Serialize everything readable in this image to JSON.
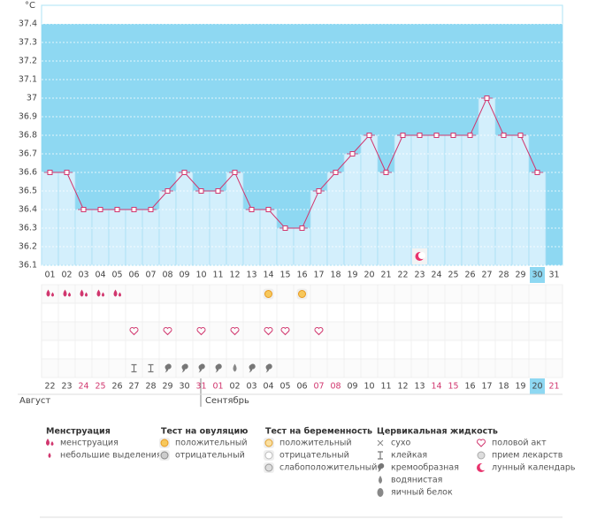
{
  "chart_data": {
    "type": "line",
    "y_unit": "°C",
    "ylim": [
      36.1,
      37.5
    ],
    "yticks": [
      36.1,
      36.2,
      36.3,
      36.4,
      36.5,
      36.6,
      36.7,
      36.8,
      36.9,
      37,
      37.1,
      37.2,
      37.3,
      37.4
    ],
    "categories": [
      "01",
      "02",
      "03",
      "04",
      "05",
      "06",
      "07",
      "08",
      "09",
      "10",
      "11",
      "12",
      "13",
      "14",
      "15",
      "16",
      "17",
      "18",
      "19",
      "20",
      "21",
      "22",
      "23",
      "24",
      "25",
      "26",
      "27",
      "28",
      "29",
      "30",
      "31"
    ],
    "values": [
      36.6,
      36.6,
      36.4,
      36.4,
      36.4,
      36.4,
      36.4,
      36.5,
      36.6,
      36.5,
      36.5,
      36.6,
      36.4,
      36.4,
      36.3,
      36.3,
      36.5,
      36.6,
      36.7,
      36.8,
      36.6,
      36.8,
      36.8,
      36.8,
      36.8,
      36.8,
      37.0,
      36.8,
      36.8,
      36.6,
      null
    ],
    "color": "#d1366e",
    "grid": true,
    "dates": [
      "22",
      "23",
      "24",
      "25",
      "26",
      "27",
      "28",
      "29",
      "30",
      "31",
      "01",
      "02",
      "03",
      "04",
      "05",
      "06",
      "07",
      "08",
      "09",
      "10",
      "11",
      "12",
      "13",
      "14",
      "15",
      "16",
      "17",
      "18",
      "19",
      "20",
      "21"
    ],
    "date_colors": [
      "#444",
      "#444",
      "#d1366e",
      "#d1366e",
      "#444",
      "#444",
      "#444",
      "#444",
      "#444",
      "#d1366e",
      "#d1366e",
      "#444",
      "#444",
      "#444",
      "#444",
      "#444",
      "#d1366e",
      "#d1366e",
      "#444",
      "#444",
      "#444",
      "#444",
      "#444",
      "#d1366e",
      "#d1366e",
      "#444",
      "#444",
      "#444",
      "#444",
      "#444",
      "#d1366e"
    ],
    "months": [
      "Август",
      "Сентябрь"
    ],
    "today": {
      "cycle_day": "30",
      "date": "20"
    }
  },
  "legend": [
    {
      "title": "Менструация",
      "items": [
        {
          "label": "менструация",
          "days": [
            "01",
            "02",
            "03",
            "04",
            "05"
          ]
        },
        {
          "label": "небольшие выделения",
          "days": []
        }
      ]
    },
    {
      "title": "Тест на овуляцию",
      "items": [
        {
          "label": "положительный",
          "days": [
            "14",
            "16"
          ]
        },
        {
          "label": "отрицательный",
          "days": []
        }
      ]
    },
    {
      "title": "Тест на беременность",
      "items": [
        {
          "label": "положительный",
          "days": []
        },
        {
          "label": "отрицательный",
          "days": []
        },
        {
          "label": "слабоположительный",
          "days": []
        }
      ]
    },
    {
      "title": "Цервикальная жидкость",
      "items": [
        {
          "label": "сухо",
          "days": []
        },
        {
          "label": "клейкая",
          "days": [
            "06",
            "07"
          ]
        },
        {
          "label": "кремообразная",
          "days": [
            "08",
            "09",
            "10",
            "11",
            "13",
            "14"
          ]
        },
        {
          "label": "водянистая",
          "days": [
            "12"
          ]
        },
        {
          "label": "яичный белок",
          "days": []
        }
      ]
    },
    {
      "items": [
        {
          "label": "половой акт",
          "days": [
            "06",
            "08",
            "10",
            "12",
            "14",
            "15",
            "17"
          ]
        },
        {
          "label": "прием лекарств",
          "days": []
        },
        {
          "label": "лунный календарь",
          "days": [
            "23"
          ]
        }
      ]
    }
  ]
}
